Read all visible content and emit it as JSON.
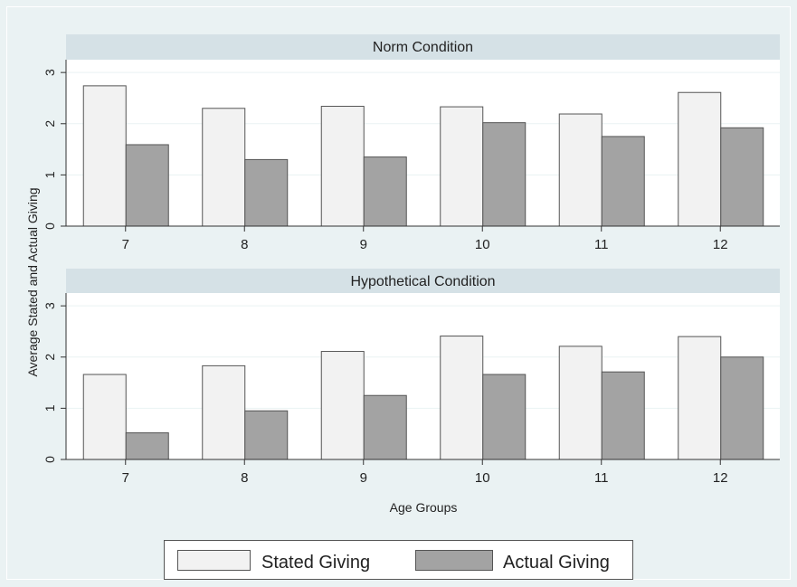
{
  "chart_data": {
    "type": "bar",
    "ylabel": "Average Stated and Actual Giving",
    "xlabel": "Age Groups",
    "legend": {
      "placement": "bottom",
      "entries": [
        "Stated Giving",
        "Actual Giving"
      ]
    },
    "colors": {
      "background": "#eaf2f3",
      "panel_header": "#d5e1e6",
      "gridline": "#eaf2f3",
      "stated": "#f2f2f2",
      "actual": "#a3a3a3",
      "bar_edge": "#555555"
    },
    "grid": true,
    "ylim": [
      0,
      3.25
    ],
    "yticks": [
      0,
      1,
      2,
      3
    ],
    "categories": [
      "7",
      "8",
      "9",
      "10",
      "11",
      "12"
    ],
    "panels": [
      {
        "title": "Norm Condition",
        "series": [
          {
            "name": "Stated Giving",
            "values": [
              2.74,
              2.3,
              2.34,
              2.33,
              2.19,
              2.61
            ]
          },
          {
            "name": "Actual Giving",
            "values": [
              1.59,
              1.3,
              1.35,
              2.02,
              1.75,
              1.92
            ]
          }
        ]
      },
      {
        "title": "Hypothetical Condition",
        "series": [
          {
            "name": "Stated Giving",
            "values": [
              1.66,
              1.83,
              2.11,
              2.41,
              2.21,
              2.4
            ]
          },
          {
            "name": "Actual Giving",
            "values": [
              0.52,
              0.95,
              1.25,
              1.66,
              1.71,
              2.0
            ]
          }
        ]
      }
    ]
  }
}
